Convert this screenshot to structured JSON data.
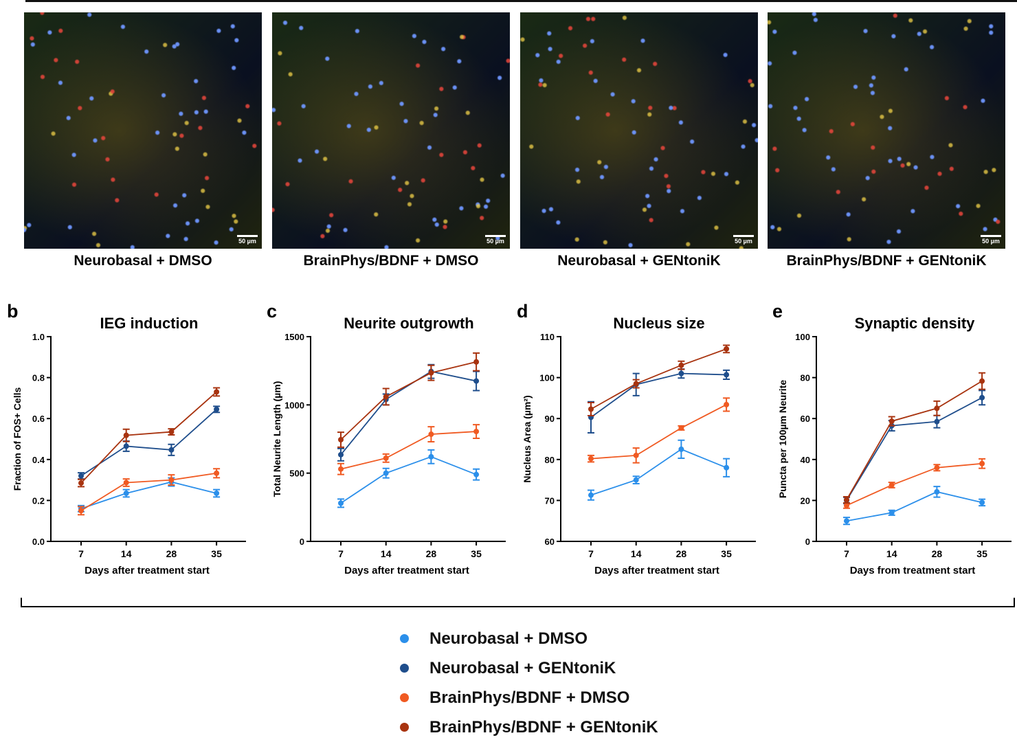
{
  "panels_images": [
    {
      "caption": "Neurobasal + DMSO",
      "scale_bar": "50 µm"
    },
    {
      "caption": "BrainPhys/BDNF + DMSO",
      "scale_bar": "50 µm"
    },
    {
      "caption": "Neurobasal + GENtoniK",
      "scale_bar": "50 µm"
    },
    {
      "caption": "BrainPhys/BDNF + GENtoniK",
      "scale_bar": "50 µm"
    }
  ],
  "legend": [
    {
      "label": "Neurobasal + DMSO",
      "color": "#2b8fea"
    },
    {
      "label": "Neurobasal + GENtoniK",
      "color": "#1f4e8c"
    },
    {
      "label": "BrainPhys/BDNF + DMSO",
      "color": "#f05a22"
    },
    {
      "label": "BrainPhys/BDNF + GENtoniK",
      "color": "#a8330f"
    }
  ],
  "chart_data": [
    {
      "panel_letter": "b",
      "type": "line",
      "title": "IEG induction",
      "xlabel": "Days after treatment start",
      "ylabel": "Fraction of FOS+ Cells",
      "categories": [
        "7",
        "14",
        "28",
        "35"
      ],
      "ylim": [
        0,
        1.0
      ],
      "yticks": [
        "0.0",
        "0.2",
        "0.4",
        "0.6",
        "0.8",
        "1.0"
      ],
      "ytick_values": [
        0,
        0.2,
        0.4,
        0.6,
        0.8,
        1.0
      ],
      "series": [
        {
          "name": "Neurobasal + DMSO",
          "values": [
            0.16,
            0.235,
            0.29,
            0.235
          ],
          "error": [
            0.015,
            0.018,
            0.02,
            0.018
          ]
        },
        {
          "name": "Neurobasal + GENtoniK",
          "values": [
            0.32,
            0.465,
            0.447,
            0.645
          ],
          "error": [
            0.015,
            0.025,
            0.027,
            0.015
          ]
        },
        {
          "name": "BrainPhys/BDNF + DMSO",
          "values": [
            0.15,
            0.287,
            0.3,
            0.333
          ],
          "error": [
            0.02,
            0.018,
            0.025,
            0.022
          ]
        },
        {
          "name": "BrainPhys/BDNF + GENtoniK",
          "values": [
            0.285,
            0.518,
            0.535,
            0.73
          ],
          "error": [
            0.018,
            0.03,
            0.015,
            0.02
          ]
        }
      ]
    },
    {
      "panel_letter": "c",
      "type": "line",
      "title": "Neurite outgrowth",
      "xlabel": "Days after treatment start",
      "ylabel": "Total Neurite Length (µm)",
      "categories": [
        "7",
        "14",
        "28",
        "35"
      ],
      "ylim": [
        0,
        1500
      ],
      "yticks": [
        "0",
        "500",
        "1000",
        "1500"
      ],
      "ytick_values": [
        0,
        500,
        1000,
        1500
      ],
      "series": [
        {
          "name": "Neurobasal + DMSO",
          "values": [
            280,
            500,
            620,
            490
          ],
          "error": [
            30,
            35,
            50,
            40
          ]
        },
        {
          "name": "Neurobasal + GENtoniK",
          "values": [
            635,
            1040,
            1245,
            1175
          ],
          "error": [
            45,
            40,
            50,
            70
          ]
        },
        {
          "name": "BrainPhys/BDNF + DMSO",
          "values": [
            530,
            610,
            785,
            805
          ],
          "error": [
            40,
            30,
            55,
            50
          ]
        },
        {
          "name": "BrainPhys/BDNF + GENtoniK",
          "values": [
            745,
            1060,
            1235,
            1315
          ],
          "error": [
            55,
            60,
            55,
            65
          ]
        }
      ]
    },
    {
      "panel_letter": "d",
      "type": "line",
      "title": "Nucleus size",
      "xlabel": "Days after treatment start",
      "ylabel": "Nucleus Area (µm²)",
      "categories": [
        "7",
        "14",
        "28",
        "35"
      ],
      "ylim": [
        60,
        110
      ],
      "yticks": [
        "60",
        "70",
        "80",
        "90",
        "100",
        "110"
      ],
      "ytick_values": [
        60,
        70,
        80,
        90,
        100,
        110
      ],
      "series": [
        {
          "name": "Neurobasal + DMSO",
          "values": [
            71.3,
            75,
            82.5,
            78
          ],
          "error": [
            1.2,
            0.9,
            2.2,
            2.2
          ]
        },
        {
          "name": "Neurobasal + GENtoniK",
          "values": [
            90.3,
            98.3,
            101,
            100.7
          ],
          "error": [
            3.8,
            2.7,
            1.1,
            1.1
          ]
        },
        {
          "name": "BrainPhys/BDNF + DMSO",
          "values": [
            80.2,
            81,
            87.7,
            93.4
          ],
          "error": [
            0.8,
            1.8,
            0.5,
            1.6
          ]
        },
        {
          "name": "BrainPhys/BDNF + GENtoniK",
          "values": [
            92.3,
            98.5,
            103,
            107
          ],
          "error": [
            1.6,
            1.0,
            1.0,
            0.9
          ]
        }
      ]
    },
    {
      "panel_letter": "e",
      "type": "line",
      "title": "Synaptic density",
      "xlabel": "Days from treatment start",
      "ylabel": "Puncta per 100µm Neurite",
      "categories": [
        "7",
        "14",
        "28",
        "35"
      ],
      "ylim": [
        0,
        100
      ],
      "yticks": [
        "0",
        "20",
        "40",
        "60",
        "80",
        "100"
      ],
      "ytick_values": [
        0,
        20,
        40,
        60,
        80,
        100
      ],
      "series": [
        {
          "name": "Neurobasal + DMSO",
          "values": [
            10,
            14,
            24.2,
            19
          ],
          "error": [
            1.7,
            1.2,
            2.6,
            1.6
          ]
        },
        {
          "name": "Neurobasal + GENtoniK",
          "values": [
            20,
            56.5,
            58.5,
            70.2
          ],
          "error": [
            1.5,
            2.5,
            3.0,
            3.5
          ]
        },
        {
          "name": "BrainPhys/BDNF + DMSO",
          "values": [
            17.5,
            27.5,
            36,
            38
          ],
          "error": [
            1.3,
            1.3,
            1.5,
            2.3
          ]
        },
        {
          "name": "BrainPhys/BDNF + GENtoniK",
          "values": [
            20.3,
            58.7,
            65,
            78.3
          ],
          "error": [
            1.5,
            2.2,
            3.5,
            4.0
          ]
        }
      ]
    }
  ]
}
